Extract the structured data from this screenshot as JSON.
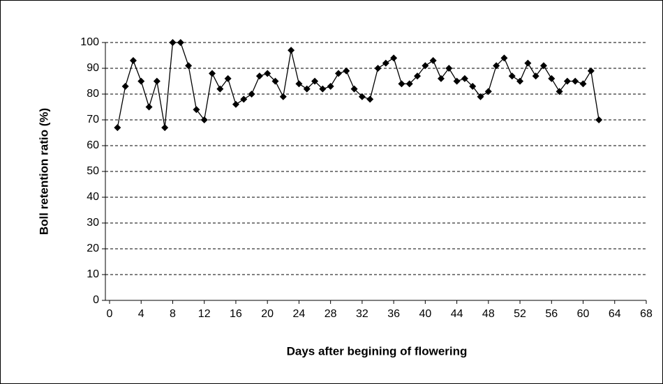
{
  "chart_data": {
    "type": "line",
    "x_label": "Days after begining of flowering",
    "y_label": "Boll retention ratio (%)",
    "x": [
      1,
      2,
      3,
      4,
      5,
      6,
      7,
      8,
      9,
      10,
      11,
      12,
      13,
      14,
      15,
      16,
      17,
      18,
      19,
      20,
      21,
      22,
      23,
      24,
      25,
      26,
      27,
      28,
      29,
      30,
      31,
      32,
      33,
      34,
      35,
      36,
      37,
      38,
      39,
      40,
      41,
      42,
      43,
      44,
      45,
      46,
      47,
      48,
      49,
      50,
      51,
      52,
      53,
      54,
      55,
      56,
      57,
      58,
      59,
      60,
      61,
      62
    ],
    "series": [
      {
        "color": "#000000",
        "values": [
          67,
          83,
          93,
          85,
          75,
          85,
          67,
          100,
          100,
          91,
          74,
          70,
          88,
          82,
          86,
          76,
          78,
          80,
          87,
          88,
          85,
          79,
          97,
          84,
          82,
          85,
          82,
          83,
          88,
          89,
          82,
          79,
          78,
          90,
          92,
          94,
          84,
          84,
          87,
          91,
          93,
          86,
          90,
          85,
          86,
          83,
          79,
          81,
          91,
          94,
          87,
          85,
          92,
          87,
          91,
          86,
          81,
          85,
          85,
          84,
          89,
          70
        ]
      }
    ],
    "xlim": [
      0,
      68
    ],
    "xticks": [
      0,
      4,
      8,
      12,
      16,
      20,
      24,
      28,
      32,
      36,
      40,
      44,
      48,
      52,
      56,
      60,
      64,
      68
    ],
    "ylim": [
      0,
      100
    ],
    "yticks": [
      0,
      10,
      20,
      30,
      40,
      50,
      60,
      70,
      80,
      90,
      100
    ],
    "grid": true
  }
}
